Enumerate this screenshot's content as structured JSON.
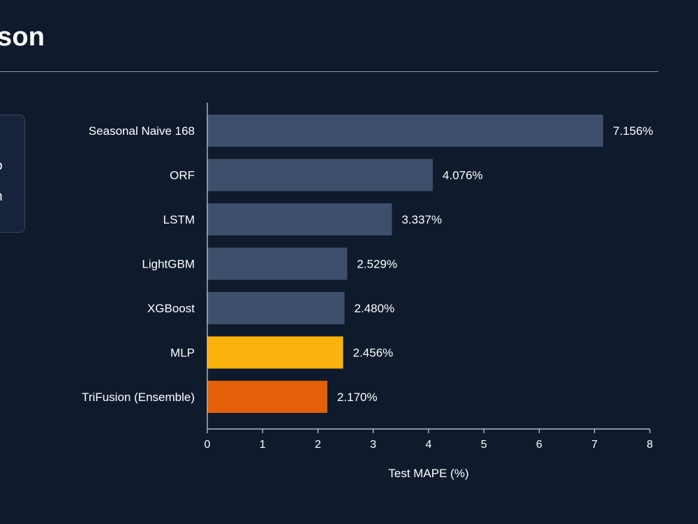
{
  "header": {
    "title": "son"
  },
  "side_panel": {
    "lines": [
      "o",
      "n"
    ]
  },
  "chart_data": {
    "type": "bar",
    "orientation": "horizontal",
    "title": "",
    "xlabel": "Test MAPE (%)",
    "ylabel": "",
    "xlim": [
      0,
      8
    ],
    "xticks": [
      0,
      1,
      2,
      3,
      4,
      5,
      6,
      7,
      8
    ],
    "grid": false,
    "categories": [
      "Seasonal Naive 168",
      "ORF",
      "LSTM",
      "LightGBM",
      "XGBoost",
      "MLP",
      "TriFusion (Ensemble)"
    ],
    "values": [
      7.156,
      4.076,
      3.337,
      2.529,
      2.48,
      2.456,
      2.17
    ],
    "data_labels": [
      "7.156%",
      "4.076%",
      "3.337%",
      "2.529%",
      "2.480%",
      "2.456%",
      "2.170%"
    ],
    "colors": [
      "#3e4f6c",
      "#3e4f6c",
      "#3e4f6c",
      "#3e4f6c",
      "#3e4f6c",
      "#fbb20c",
      "#e45f08"
    ]
  }
}
